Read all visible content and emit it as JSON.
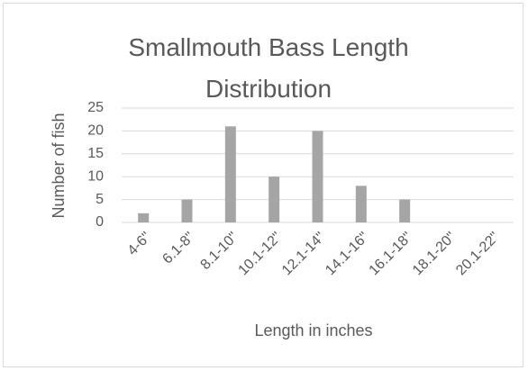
{
  "chart_data": {
    "type": "bar",
    "title": "Smallmouth Bass Length Distribution",
    "x_label": "Length in inches",
    "y_label": "Number of fish",
    "categories": [
      "4-6\"",
      "6.1-8\"",
      "8.1-10\"",
      "10.1-12\"",
      "12.1-14\"",
      "14.1-16\"",
      "16.1-18\"",
      "18.1-20\"",
      "20.1-22\""
    ],
    "values": [
      2,
      5,
      21,
      10,
      20,
      8,
      5,
      0,
      0
    ],
    "color": "#a5a5a5",
    "ylim": [
      0,
      25
    ],
    "yticks": [
      0,
      5,
      10,
      15,
      20,
      25
    ],
    "grid": true
  }
}
